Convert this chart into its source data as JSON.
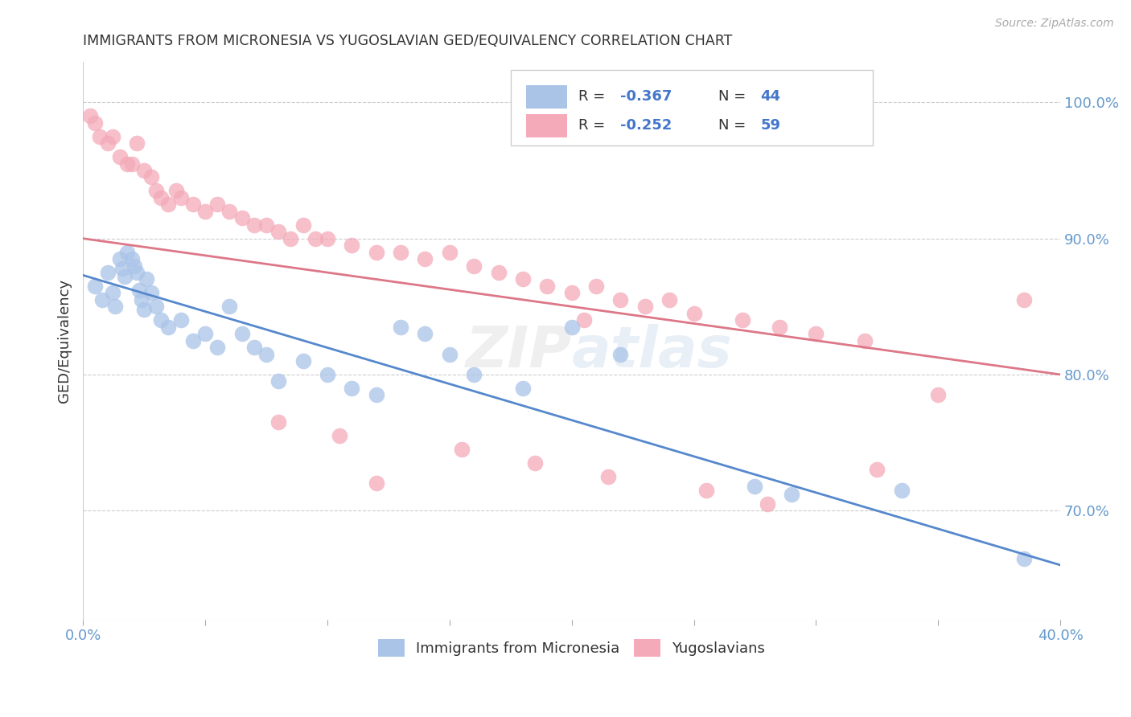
{
  "title": "IMMIGRANTS FROM MICRONESIA VS YUGOSLAVIAN GED/EQUIVALENCY CORRELATION CHART",
  "source": "Source: ZipAtlas.com",
  "ylabel": "GED/Equivalency",
  "right_yticks": [
    70.0,
    80.0,
    90.0,
    100.0
  ],
  "legend_blue_r": "-0.367",
  "legend_blue_n": "44",
  "legend_pink_r": "-0.252",
  "legend_pink_n": "59",
  "legend_blue_label": "Immigrants from Micronesia",
  "legend_pink_label": "Yugoslavians",
  "blue_color": "#aac4e8",
  "pink_color": "#f4aab8",
  "blue_line_color": "#5588cc",
  "pink_line_color": "#dd7788",
  "text_color_r": "#333333",
  "text_color_n": "#4477cc",
  "blue_scatter_x": [
    0.5,
    0.8,
    1.0,
    1.2,
    1.3,
    1.5,
    1.6,
    1.7,
    1.8,
    2.0,
    2.1,
    2.2,
    2.3,
    2.4,
    2.5,
    2.6,
    2.8,
    3.0,
    3.2,
    3.5,
    4.0,
    4.5,
    5.0,
    5.5,
    6.0,
    6.5,
    7.0,
    7.5,
    8.0,
    9.0,
    10.0,
    11.0,
    12.0,
    13.0,
    14.0,
    15.0,
    16.0,
    18.0,
    20.0,
    22.0,
    27.5,
    29.0,
    33.5,
    38.5
  ],
  "blue_scatter_y": [
    86.5,
    85.5,
    87.5,
    86.0,
    85.0,
    88.5,
    87.8,
    87.2,
    89.0,
    88.5,
    88.0,
    87.5,
    86.2,
    85.5,
    84.8,
    87.0,
    86.0,
    85.0,
    84.0,
    83.5,
    84.0,
    82.5,
    83.0,
    82.0,
    85.0,
    83.0,
    82.0,
    81.5,
    79.5,
    81.0,
    80.0,
    79.0,
    78.5,
    83.5,
    83.0,
    81.5,
    80.0,
    79.0,
    83.5,
    81.5,
    71.8,
    71.2,
    71.5,
    66.5
  ],
  "pink_scatter_x": [
    0.3,
    0.5,
    0.7,
    1.0,
    1.2,
    1.5,
    1.8,
    2.0,
    2.2,
    2.5,
    2.8,
    3.0,
    3.2,
    3.5,
    3.8,
    4.0,
    4.5,
    5.0,
    5.5,
    6.0,
    6.5,
    7.0,
    7.5,
    8.0,
    8.5,
    9.0,
    9.5,
    10.0,
    11.0,
    12.0,
    13.0,
    14.0,
    15.0,
    16.0,
    17.0,
    18.0,
    19.0,
    20.0,
    21.0,
    22.0,
    23.0,
    24.0,
    25.0,
    27.0,
    28.5,
    30.0,
    32.0,
    35.0,
    10.5,
    15.5,
    18.5,
    21.5,
    12.0,
    8.0,
    25.5,
    28.0,
    38.5,
    32.5,
    20.5
  ],
  "pink_scatter_y": [
    99.0,
    98.5,
    97.5,
    97.0,
    97.5,
    96.0,
    95.5,
    95.5,
    97.0,
    95.0,
    94.5,
    93.5,
    93.0,
    92.5,
    93.5,
    93.0,
    92.5,
    92.0,
    92.5,
    92.0,
    91.5,
    91.0,
    91.0,
    90.5,
    90.0,
    91.0,
    90.0,
    90.0,
    89.5,
    89.0,
    89.0,
    88.5,
    89.0,
    88.0,
    87.5,
    87.0,
    86.5,
    86.0,
    86.5,
    85.5,
    85.0,
    85.5,
    84.5,
    84.0,
    83.5,
    83.0,
    82.5,
    78.5,
    75.5,
    74.5,
    73.5,
    72.5,
    72.0,
    76.5,
    71.5,
    70.5,
    85.5,
    73.0,
    84.0
  ],
  "blue_line": {
    "x0": 0.0,
    "x1": 40.0,
    "y0": 87.3,
    "y1": 66.0
  },
  "pink_line": {
    "x0": 0.0,
    "x1": 40.0,
    "y0": 90.0,
    "y1": 80.0
  },
  "xlim": [
    0.0,
    40.0
  ],
  "ylim": [
    62.0,
    103.0
  ],
  "background_color": "#ffffff",
  "grid_color": "#cccccc",
  "title_color": "#333333",
  "source_color": "#aaaaaa",
  "axis_label_color": "#6699cc"
}
